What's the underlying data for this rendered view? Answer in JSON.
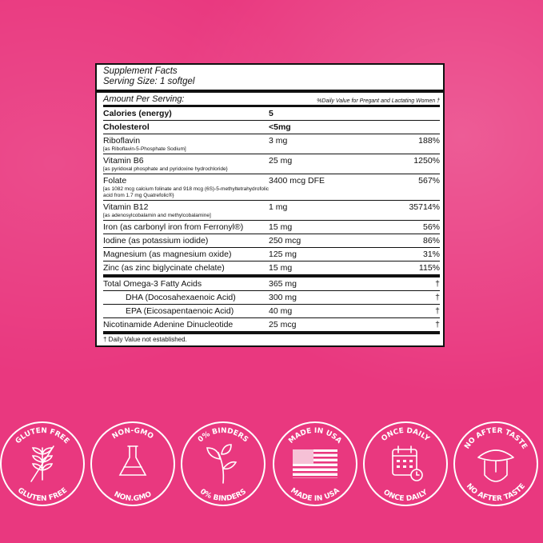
{
  "panel": {
    "title": "Supplement Facts",
    "serving_size": "Serving Size: 1 softgel",
    "amount_per_serving": "Amount Per Serving:",
    "dv_header": "%Daily Value for Pregant and Lactating Women †",
    "rows": [
      {
        "name": "Calories (energy)",
        "amount": "5",
        "dv": ""
      },
      {
        "name": "Cholesterol",
        "amount": "<5mg",
        "dv": ""
      },
      {
        "name": "Riboflavin",
        "sub": "[as Riboflavin-5-Phosphate Sodium]",
        "amount": "3 mg",
        "dv": "188%"
      },
      {
        "name": "Vitamin B6",
        "sub": "[as pyridoxal phosphate and pyridoxine hydrochloride}",
        "amount": "25 mg",
        "dv": "1250%"
      },
      {
        "name": "Folate",
        "sub": "[as 1082 mcg calcium folinate and 918 mcg (6S)-5-methyltetrahydrofolic acid from 1.7 mg Quatrefolic®}",
        "amount": "3400 mcg DFE",
        "dv": "567%"
      },
      {
        "name": "Vitamin B12",
        "sub": "[as adenosylcobalamin and methylcobalamine]",
        "amount": "1 mg",
        "dv": "35714%"
      },
      {
        "name": "Iron (as carbonyl iron from Ferronyl®)",
        "amount": "15 mg",
        "dv": "56%"
      },
      {
        "name": "Iodine (as potassium iodide)",
        "amount": "250 mcg",
        "dv": "86%"
      },
      {
        "name": "Magnesium (as magnesium oxide)",
        "amount": "125 mg",
        "dv": "31%"
      },
      {
        "name": "Zinc (as zinc biglycinate chelate)",
        "amount": "15 mg",
        "dv": "115%"
      },
      {
        "name": "Total Omega-3 Fatty Acids",
        "amount": "365 mg",
        "dv": "†"
      },
      {
        "name": "DHA (Docosahexaenoic Acid)",
        "amount": "300 mg",
        "dv": "†"
      },
      {
        "name": "EPA (Eicosapentaenoic Acid)",
        "amount": "40 mg",
        "dv": "†"
      },
      {
        "name": "Nicotinamide Adenine Dinucleotide",
        "amount": "25 mcg",
        "dv": "†"
      }
    ],
    "footnote": "† Daily Value not established."
  },
  "badges": [
    {
      "label": "GLUTEN FREE",
      "icon": "wheat-crossed-icon"
    },
    {
      "label": "NON-GMO",
      "bottom": "NON.GMO",
      "icon": "flask-icon"
    },
    {
      "label": "0% BINDERS",
      "icon": "leaf-sprig-icon"
    },
    {
      "label": "MADE IN USA",
      "icon": "us-flag-icon"
    },
    {
      "label": "ONCE DAILY",
      "icon": "calendar-clock-icon"
    },
    {
      "label": "NO AFTER TASTE",
      "icon": "tongue-icon"
    }
  ],
  "colors": {
    "background": "#e9387f",
    "panel": "#ffffff",
    "ink": "#111111",
    "badge": "#ffffff"
  }
}
